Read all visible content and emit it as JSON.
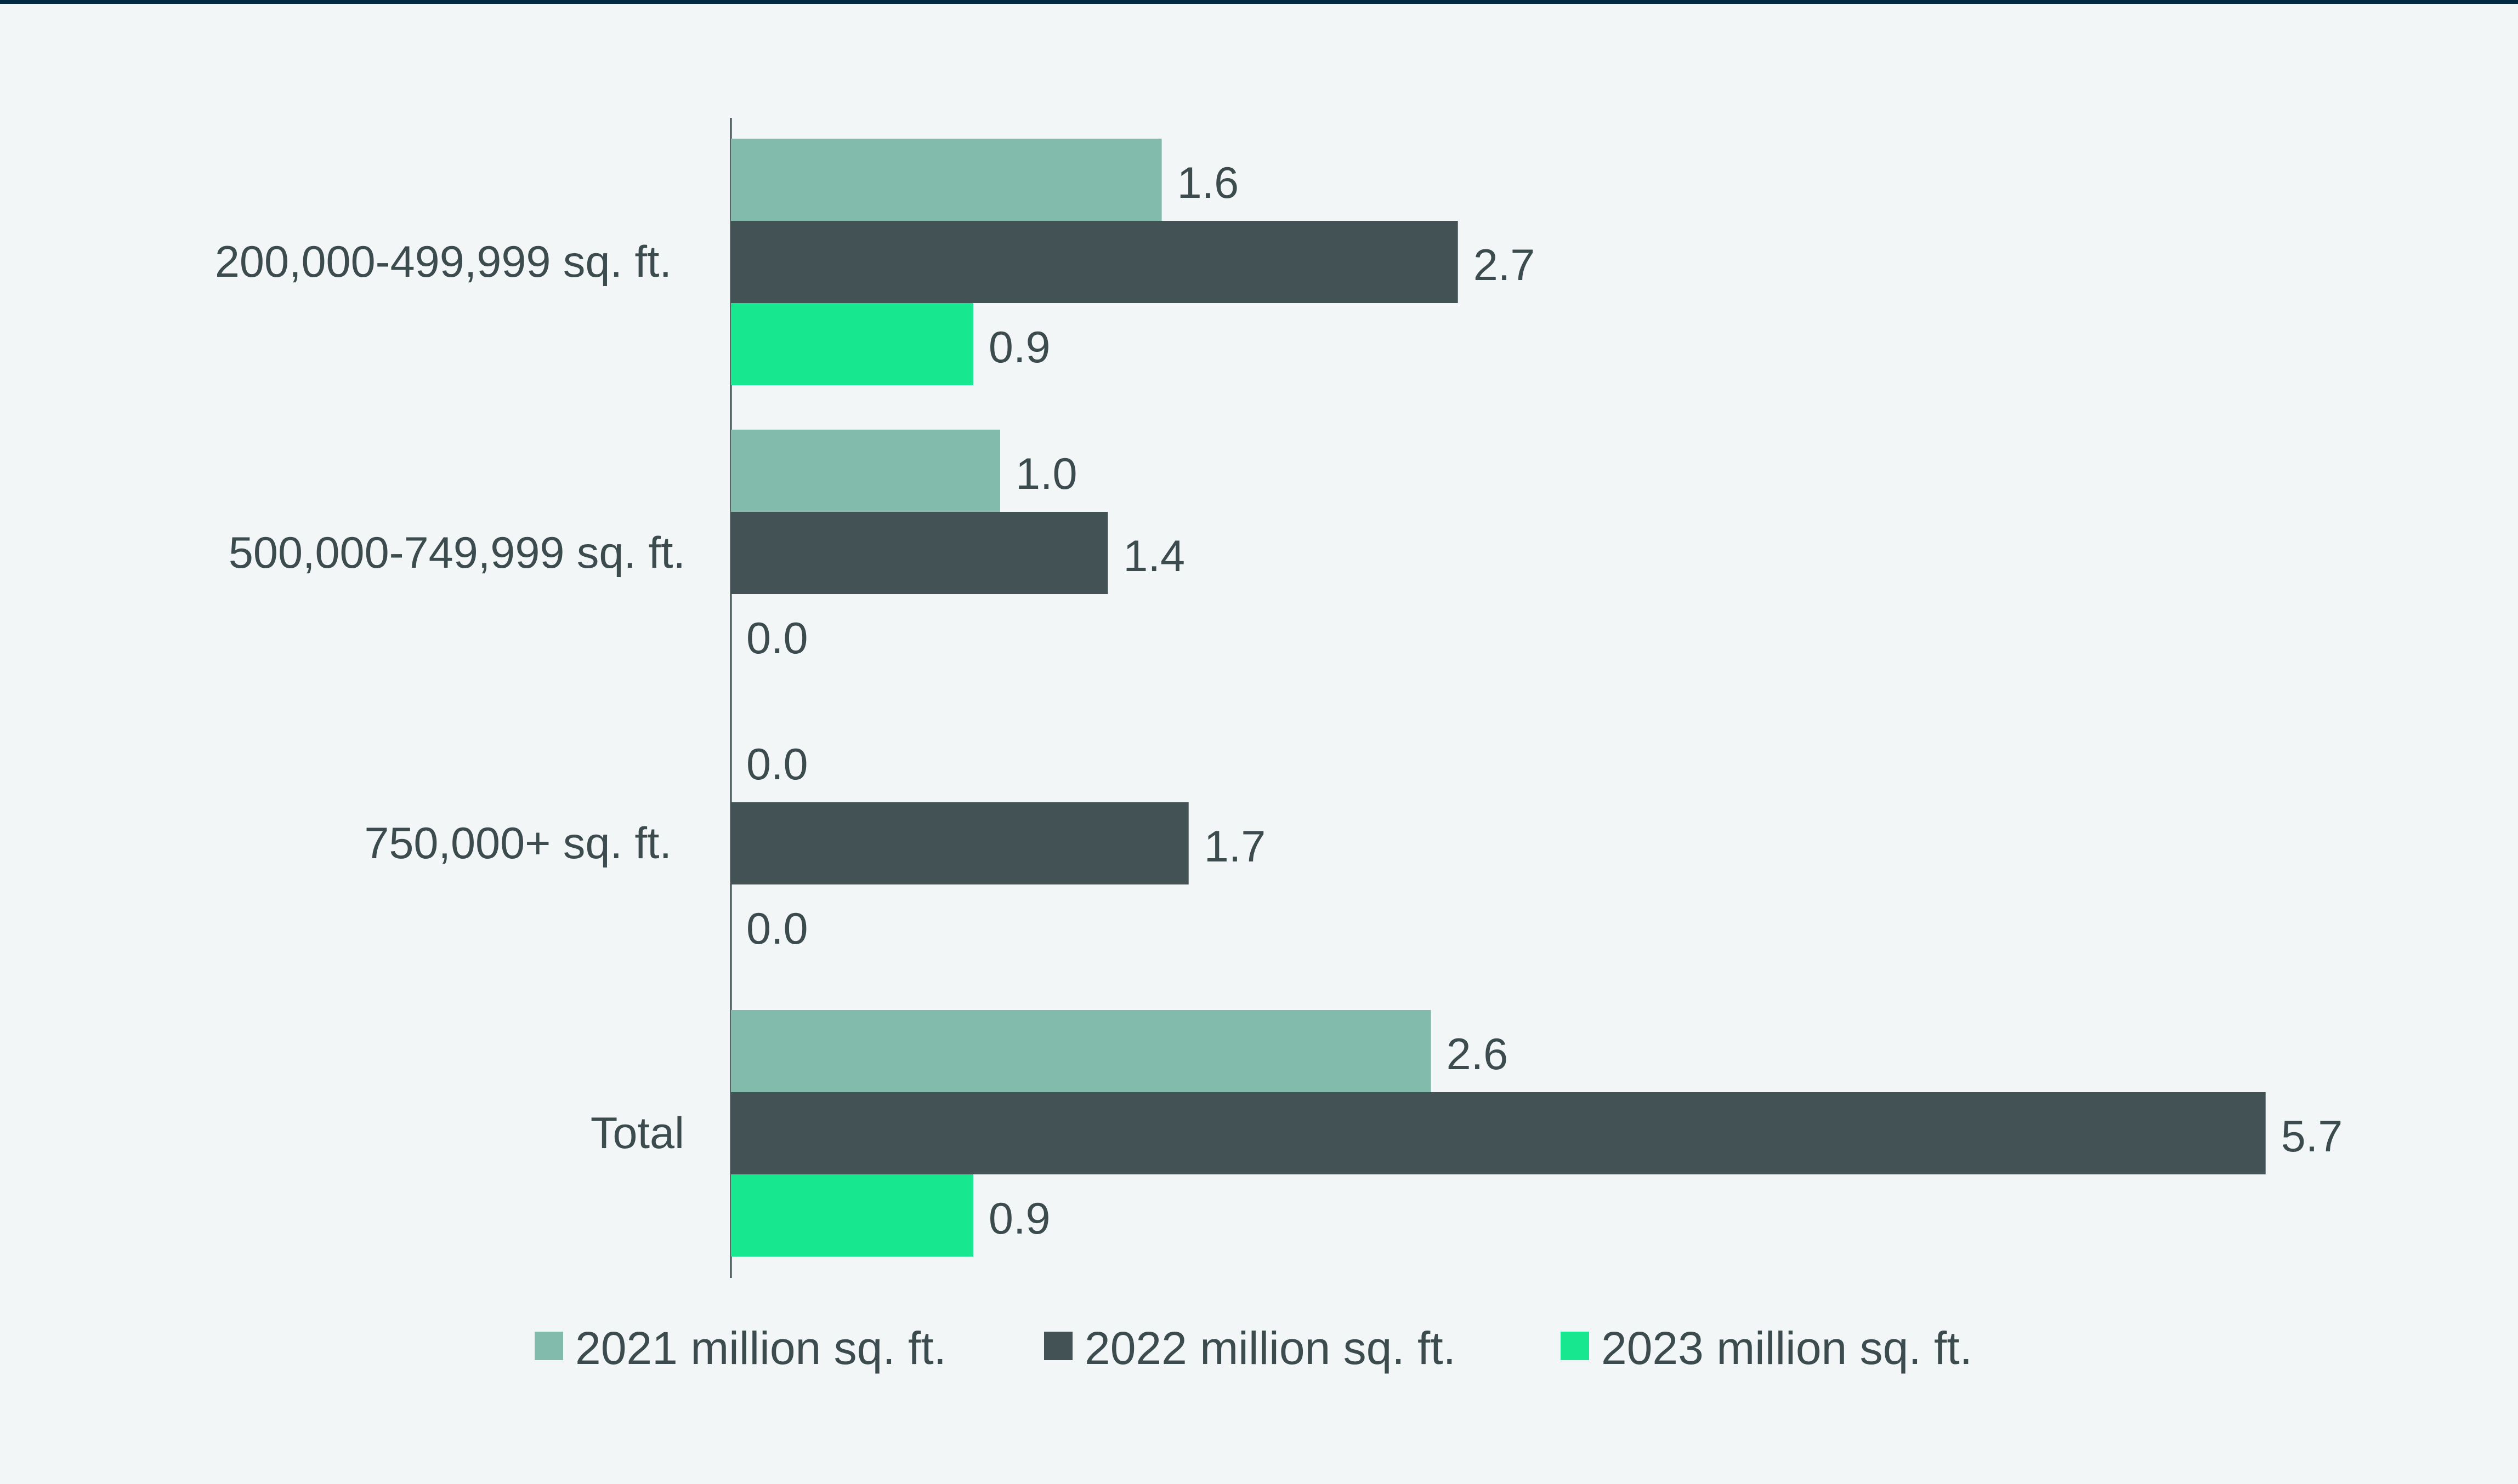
{
  "chart_data": {
    "type": "bar",
    "orientation": "horizontal",
    "categories": [
      "200,000-499,999 sq. ft.",
      "500,000-749,999 sq. ft.",
      "750,000+ sq. ft.",
      "Total"
    ],
    "series": [
      {
        "name": "2021 million sq. ft.",
        "color": "#82baab",
        "values": [
          1.6,
          1.0,
          0.0,
          2.6
        ],
        "labels": [
          "1.6",
          "1.0",
          "0.0",
          "2.6"
        ]
      },
      {
        "name": "2022 million sq. ft.",
        "color": "#435254",
        "values": [
          2.7,
          1.4,
          1.7,
          5.7
        ],
        "labels": [
          "2.7",
          "1.4",
          "1.7",
          "5.7"
        ]
      },
      {
        "name": "2023 million sq. ft.",
        "color": "#17e88f",
        "values": [
          0.9,
          0.0,
          0.0,
          0.9
        ],
        "labels": [
          "0.9",
          "0.0",
          "0.0",
          "0.9"
        ]
      }
    ],
    "xlim": [
      0,
      6.0
    ],
    "grid": false,
    "legend_position": "bottom",
    "data_labels": true
  }
}
